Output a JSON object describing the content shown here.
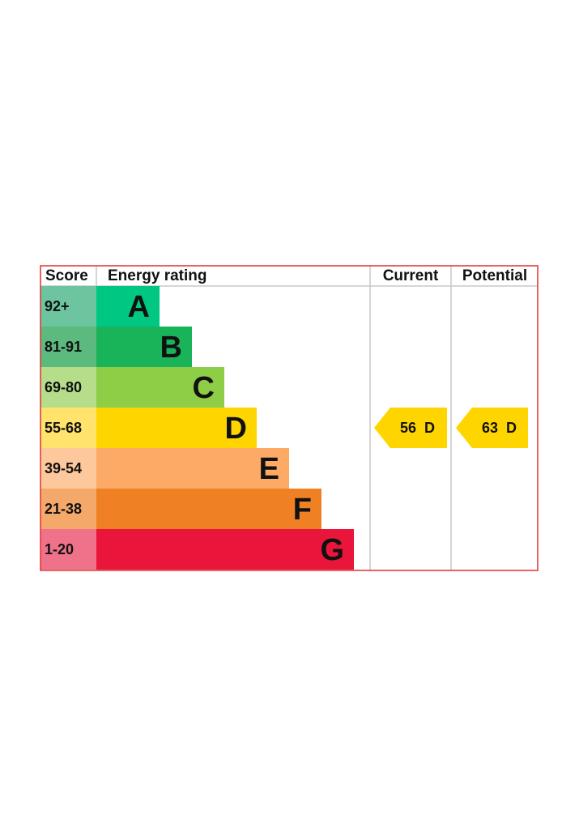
{
  "header": {
    "score": "Score",
    "energy_rating": "Energy rating",
    "current": "Current",
    "potential": "Potential"
  },
  "bands": [
    {
      "score": "92+",
      "letter": "A",
      "color": "#00c781",
      "score_color": "#6cc59f"
    },
    {
      "score": "81-91",
      "letter": "B",
      "color": "#19b459",
      "score_color": "#5dba7f"
    },
    {
      "score": "69-80",
      "letter": "C",
      "color": "#8dce46",
      "score_color": "#b5dd8a"
    },
    {
      "score": "55-68",
      "letter": "D",
      "color": "#ffd500",
      "score_color": "#ffe36c"
    },
    {
      "score": "39-54",
      "letter": "E",
      "color": "#fcaa65",
      "score_color": "#fdc89c"
    },
    {
      "score": "21-38",
      "letter": "F",
      "color": "#ef8023",
      "score_color": "#f4a96b"
    },
    {
      "score": "1-20",
      "letter": "G",
      "color": "#e9153b",
      "score_color": "#f0728a"
    }
  ],
  "current": {
    "value": "56",
    "letter": "D",
    "color": "#ffd500"
  },
  "potential": {
    "value": "63",
    "letter": "D",
    "color": "#ffd500"
  }
}
